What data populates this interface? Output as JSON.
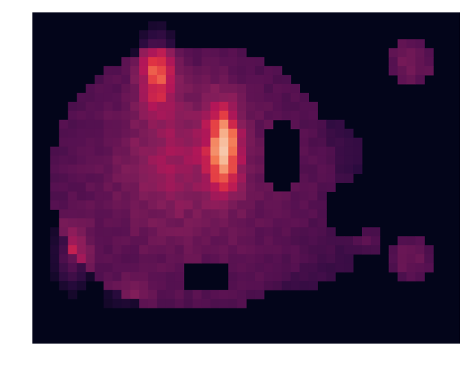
{
  "chart_data": {
    "type": "heatmap",
    "title": "",
    "xlabel": "",
    "ylabel": "",
    "grid": false,
    "legend": "none",
    "colormap": [
      "#03051a",
      "#2b0b3f",
      "#571151",
      "#841e5a",
      "#b41658",
      "#e13342",
      "#f37651",
      "#f6b48f",
      "#faebdd"
    ],
    "background_value": 0,
    "vrange": [
      0,
      1
    ],
    "n_cols": 48,
    "n_rows": 37,
    "blobs": [
      {
        "name": "main-body",
        "cx": 18,
        "cy": 18.5,
        "rx": 16,
        "ry": 15,
        "value": 0.3
      },
      {
        "name": "central-warm-core",
        "cx": 16,
        "cy": 16,
        "rx": 7,
        "ry": 9,
        "value": 0.14
      },
      {
        "name": "top-left-hot-streak",
        "cx": 14,
        "cy": 6.5,
        "rx": 2.4,
        "ry": 4.8,
        "value": 0.42
      },
      {
        "name": "center-brightest-streak",
        "cx": 21.5,
        "cy": 15,
        "rx": 2.3,
        "ry": 5.8,
        "value": 0.56
      },
      {
        "name": "left-bottom-warm-patch",
        "cx": 4.5,
        "cy": 27,
        "rx": 2.4,
        "ry": 4.5,
        "value": 0.28
      },
      {
        "name": "bottom-warm-patch",
        "cx": 10.5,
        "cy": 31.5,
        "rx": 3.5,
        "ry": 2.2,
        "value": 0.12
      },
      {
        "name": "right-lower-extension",
        "cx": 29,
        "cy": 23,
        "rx": 9,
        "ry": 8,
        "value": 0.22
      },
      {
        "name": "right-middle-fringe",
        "cx": 33,
        "cy": 16,
        "rx": 4,
        "ry": 4,
        "value": 0.18
      },
      {
        "name": "top-right-island",
        "cx": 42.5,
        "cy": 5.5,
        "rx": 2.5,
        "ry": 3,
        "value": 0.32
      },
      {
        "name": "right-lower-island",
        "cx": 42.5,
        "cy": 27.5,
        "rx": 2.2,
        "ry": 2.6,
        "value": 0.3
      },
      {
        "name": "right-small-island",
        "cx": 37.5,
        "cy": 25.5,
        "rx": 1.5,
        "ry": 1.5,
        "value": 0.25
      }
    ],
    "holes": [
      {
        "name": "inner-gap-right",
        "cx": 28,
        "cy": 16,
        "rx": 2.2,
        "ry": 4.2
      },
      {
        "name": "bottom-notch",
        "cx": 19.5,
        "cy": 29.5,
        "rx": 2.5,
        "ry": 2
      },
      {
        "name": "right-gap",
        "cx": 35.5,
        "cy": 22,
        "rx": 2.5,
        "ry": 2.8
      }
    ]
  }
}
